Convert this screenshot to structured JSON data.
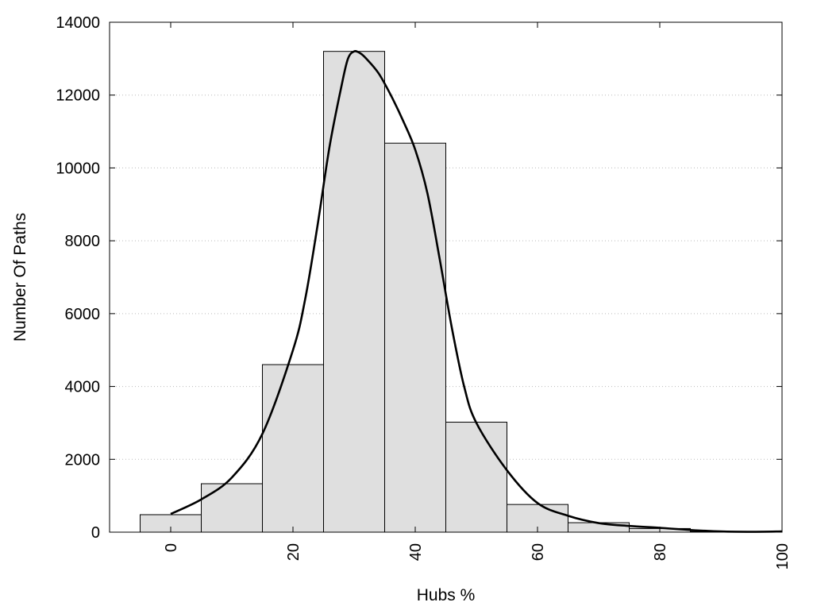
{
  "chart_data": {
    "type": "bar",
    "title": "",
    "xlabel": "Hubs %",
    "ylabel": "Number Of Paths",
    "xlim": [
      -10,
      100
    ],
    "ylim": [
      0,
      14000
    ],
    "x_ticks": [
      0,
      20,
      40,
      60,
      80,
      100
    ],
    "y_ticks": [
      0,
      2000,
      4000,
      6000,
      8000,
      10000,
      12000,
      14000
    ],
    "grid": "horizontal dotted",
    "bin_width": 10,
    "bins": [
      {
        "x": 0,
        "value": 480
      },
      {
        "x": 10,
        "value": 1330
      },
      {
        "x": 20,
        "value": 4600
      },
      {
        "x": 30,
        "value": 13200
      },
      {
        "x": 40,
        "value": 10680
      },
      {
        "x": 50,
        "value": 3020
      },
      {
        "x": 60,
        "value": 760
      },
      {
        "x": 70,
        "value": 260
      },
      {
        "x": 80,
        "value": 100
      },
      {
        "x": 90,
        "value": 20
      }
    ],
    "curve": {
      "x": [
        0,
        5,
        10,
        15,
        20,
        22,
        24,
        26,
        28,
        29,
        30,
        31,
        32,
        34,
        36,
        38,
        40,
        42,
        44,
        46,
        48,
        50,
        55,
        60,
        65,
        70,
        75,
        80,
        85,
        90,
        95,
        100
      ],
      "y": [
        500,
        900,
        1500,
        2700,
        5000,
        6400,
        8400,
        10600,
        12300,
        13000,
        13200,
        13150,
        13000,
        12600,
        12000,
        11300,
        10500,
        9300,
        7500,
        5600,
        4000,
        3000,
        1700,
        800,
        450,
        250,
        170,
        120,
        60,
        20,
        10,
        20
      ]
    },
    "colors": {
      "bar_fill": "#dfdfdf",
      "bar_stroke": "#000000",
      "curve": "#000000",
      "grid": "#bbbbbb"
    }
  }
}
